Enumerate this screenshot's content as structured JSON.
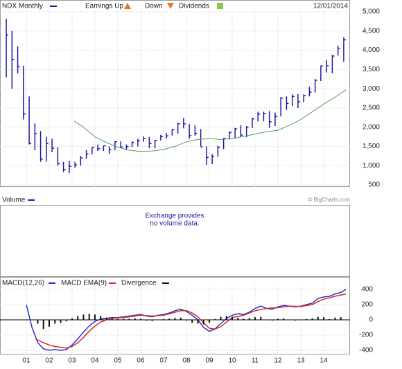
{
  "chart_data": [
    {
      "type": "ohlc",
      "date": "12/01/2014",
      "events": [
        "Earnings Up",
        "Down",
        "Dividends"
      ],
      "xlim": [
        -0.15,
        15.15
      ],
      "ylim": [
        446,
        5306
      ],
      "yticks": [
        500,
        {
          "value": 1000,
          "label": "1,000"
        },
        {
          "value": 1500,
          "label": "1,500"
        },
        {
          "value": 2000,
          "label": "2,000"
        },
        {
          "value": 2500,
          "label": "2,500"
        },
        {
          "value": 3000,
          "label": "3,000"
        },
        {
          "value": 3500,
          "label": "3,500"
        },
        {
          "value": 4000,
          "label": "4,000"
        },
        {
          "value": 4500,
          "label": "4,500"
        },
        {
          "value": 5000,
          "label": "5,000"
        }
      ],
      "grid": true,
      "series": [
        {
          "name": "NDX Monthly",
          "color": "#1a1aa0",
          "x": [
            0.125,
            0.375,
            0.625,
            0.875,
            1.125,
            1.375,
            1.625,
            1.875,
            2.125,
            2.375,
            2.625,
            2.875,
            3.125,
            3.375,
            3.625,
            3.875,
            4.125,
            4.375,
            4.625,
            4.875,
            5.125,
            5.375,
            5.625,
            5.875,
            6.125,
            6.375,
            6.625,
            6.875,
            7.125,
            7.375,
            7.625,
            7.875,
            8.125,
            8.375,
            8.625,
            8.875,
            9.125,
            9.375,
            9.625,
            9.875,
            10.125,
            10.375,
            10.625,
            10.875,
            11.125,
            11.375,
            11.625,
            11.875,
            12.125,
            12.375,
            12.625,
            12.875,
            13.125,
            13.375,
            13.625,
            13.875,
            14.125,
            14.375,
            14.625,
            14.875
          ],
          "high": [
            4816,
            4500,
            4100,
            3600,
            2800,
            2100,
            1900,
            1750,
            1700,
            1480,
            1100,
            1120,
            1100,
            1250,
            1400,
            1480,
            1550,
            1520,
            1500,
            1630,
            1630,
            1550,
            1630,
            1700,
            1760,
            1750,
            1670,
            1800,
            1850,
            1950,
            2100,
            2240,
            2080,
            2050,
            1950,
            1500,
            1300,
            1520,
            1720,
            1890,
            1980,
            2050,
            2030,
            2240,
            2400,
            2400,
            2420,
            2380,
            2780,
            2800,
            2850,
            2860,
            2850,
            3050,
            3250,
            3600,
            3740,
            3880,
            4120,
            4340
          ],
          "low": [
            3300,
            3000,
            3400,
            2200,
            1550,
            1400,
            1100,
            1100,
            1350,
            1000,
            830,
            800,
            950,
            1000,
            1180,
            1300,
            1380,
            1380,
            1300,
            1400,
            1460,
            1400,
            1480,
            1500,
            1620,
            1450,
            1450,
            1650,
            1700,
            1780,
            1830,
            1970,
            1700,
            1780,
            1500,
            1020,
            1040,
            1230,
            1430,
            1680,
            1700,
            1750,
            1740,
            1980,
            2150,
            2150,
            1980,
            2030,
            2280,
            2450,
            2550,
            2500,
            2650,
            2800,
            2900,
            3200,
            3420,
            3400,
            3860,
            3700
          ],
          "close": [
            4397,
            3763,
            3570,
            2341,
            1573,
            1830,
            1168,
            1577,
            1452,
            1051,
            896,
            984,
            1018,
            1201,
            1303,
            1468,
            1439,
            1516,
            1412,
            1621,
            1483,
            1493,
            1601,
            1645,
            1704,
            1575,
            1654,
            1756,
            1772,
            1934,
            2091,
            2084,
            1781,
            1837,
            1483,
            1212,
            1237,
            1477,
            1706,
            1860,
            1957,
            1794,
            2001,
            2217,
            2338,
            2353,
            2140,
            2277,
            2755,
            2616,
            2799,
            2660,
            2818,
            2910,
            3218,
            3592,
            3596,
            3849,
            4050,
            4270
          ]
        },
        {
          "color": "#5a9e5a",
          "kind": "line",
          "x": [
            3.1,
            3.5,
            4.0,
            4.5,
            5.0,
            5.5,
            6.0,
            6.5,
            7.0,
            7.5,
            8.0,
            8.5,
            9.0,
            9.5,
            10.0,
            10.5,
            11.0,
            11.5,
            12.0,
            12.5,
            13.0,
            13.5,
            14.0,
            14.5,
            14.97
          ],
          "values": [
            2160,
            2000,
            1750,
            1600,
            1480,
            1400,
            1370,
            1380,
            1420,
            1500,
            1620,
            1680,
            1700,
            1680,
            1700,
            1760,
            1820,
            1880,
            1920,
            2050,
            2200,
            2400,
            2600,
            2780,
            2970
          ]
        }
      ]
    },
    {
      "type": "empty",
      "title": "Volume",
      "color": "#1a1aa0",
      "message": [
        "Exchange provides",
        "no volume data."
      ],
      "credit": "© BigCharts.com"
    },
    {
      "type": "macd",
      "xlim": [
        -0.15,
        15.15
      ],
      "ylim": [
        -455,
        455
      ],
      "yticks": [
        -400,
        -200,
        0,
        200,
        400
      ],
      "xticks": [
        {
          "value": 1,
          "label": "01"
        },
        {
          "value": 2,
          "label": "02"
        },
        {
          "value": 3,
          "label": "03"
        },
        {
          "value": 4,
          "label": "04"
        },
        {
          "value": 5,
          "label": "05"
        },
        {
          "value": 6,
          "label": "06"
        },
        {
          "value": 7,
          "label": "07"
        },
        {
          "value": 8,
          "label": "08"
        },
        {
          "value": 9,
          "label": "09"
        },
        {
          "value": 10,
          "label": "10"
        },
        {
          "value": 11,
          "label": "11"
        },
        {
          "value": 12,
          "label": "12"
        },
        {
          "value": 13,
          "label": "13"
        },
        {
          "value": 14,
          "label": "14"
        }
      ],
      "series": [
        {
          "name": "MACD(12,26)",
          "color": "#2233cc",
          "kind": "line",
          "x": [
            1.0,
            1.25,
            1.5,
            1.75,
            2.0,
            2.25,
            2.5,
            2.75,
            3.0,
            3.25,
            3.5,
            3.75,
            4.0,
            4.25,
            4.5,
            4.75,
            5.0,
            5.25,
            5.5,
            5.75,
            6.0,
            6.25,
            6.5,
            6.75,
            7.0,
            7.25,
            7.5,
            7.75,
            8.0,
            8.25,
            8.5,
            8.75,
            9.0,
            9.25,
            9.5,
            9.75,
            10.0,
            10.25,
            10.5,
            10.75,
            11.0,
            11.25,
            11.5,
            11.75,
            12.0,
            12.25,
            12.5,
            12.75,
            13.0,
            13.25,
            13.5,
            13.75,
            14.0,
            14.25,
            14.5,
            14.75,
            14.97
          ],
          "values": [
            200,
            -100,
            -300,
            -380,
            -400,
            -390,
            -400,
            -390,
            -330,
            -250,
            -160,
            -80,
            -20,
            10,
            20,
            30,
            30,
            40,
            50,
            60,
            70,
            50,
            40,
            60,
            70,
            90,
            120,
            140,
            110,
            60,
            0,
            -100,
            -150,
            -120,
            -50,
            20,
            60,
            80,
            70,
            100,
            150,
            180,
            150,
            140,
            170,
            190,
            180,
            170,
            180,
            200,
            220,
            280,
            300,
            310,
            340,
            360,
            400
          ]
        },
        {
          "name": "MACD EMA(9)",
          "color": "#dd2222",
          "kind": "line",
          "x": [
            1.4,
            1.75,
            2.0,
            2.25,
            2.5,
            2.75,
            3.0,
            3.25,
            3.5,
            3.75,
            4.0,
            4.25,
            4.5,
            4.75,
            5.0,
            5.5,
            6.0,
            6.5,
            7.0,
            7.5,
            7.75,
            8.0,
            8.25,
            8.5,
            8.75,
            9.0,
            9.25,
            9.5,
            9.75,
            10.0,
            10.5,
            11.0,
            11.5,
            12.0,
            12.5,
            13.0,
            13.5,
            13.75,
            14.0,
            14.5,
            14.97
          ],
          "values": [
            -250,
            -300,
            -330,
            -350,
            -360,
            -370,
            -350,
            -300,
            -230,
            -150,
            -80,
            -30,
            0,
            20,
            25,
            40,
            60,
            50,
            60,
            100,
            120,
            120,
            90,
            40,
            -40,
            -110,
            -120,
            -90,
            -30,
            30,
            60,
            120,
            150,
            160,
            180,
            175,
            200,
            240,
            270,
            310,
            340
          ]
        },
        {
          "name": "Divergence",
          "color": "#111111",
          "kind": "bar",
          "x": [
            1.5,
            1.75,
            2.0,
            2.25,
            2.5,
            2.75,
            3.0,
            3.25,
            3.5,
            3.75,
            4.0,
            4.25,
            4.5,
            4.75,
            5.0,
            5.25,
            5.5,
            5.75,
            6.0,
            6.25,
            6.5,
            6.75,
            7.0,
            7.25,
            7.5,
            7.75,
            8.0,
            8.25,
            8.5,
            8.75,
            9.0,
            9.25,
            9.5,
            9.75,
            10.0,
            10.25,
            10.5,
            10.75,
            11.0,
            11.25,
            11.5,
            11.75,
            12.0,
            12.25,
            12.5,
            12.75,
            13.0,
            13.25,
            13.5,
            13.75,
            14.0,
            14.25,
            14.5,
            14.75
          ],
          "values": [
            -50,
            -120,
            -90,
            -50,
            -40,
            -20,
            20,
            50,
            70,
            80,
            70,
            50,
            30,
            15,
            10,
            15,
            15,
            20,
            15,
            -10,
            -15,
            5,
            10,
            15,
            25,
            30,
            -10,
            -40,
            -50,
            -60,
            -40,
            10,
            40,
            50,
            40,
            30,
            15,
            25,
            35,
            40,
            5,
            -10,
            15,
            20,
            5,
            -10,
            5,
            10,
            20,
            40,
            35,
            10,
            30,
            35
          ]
        }
      ]
    }
  ]
}
